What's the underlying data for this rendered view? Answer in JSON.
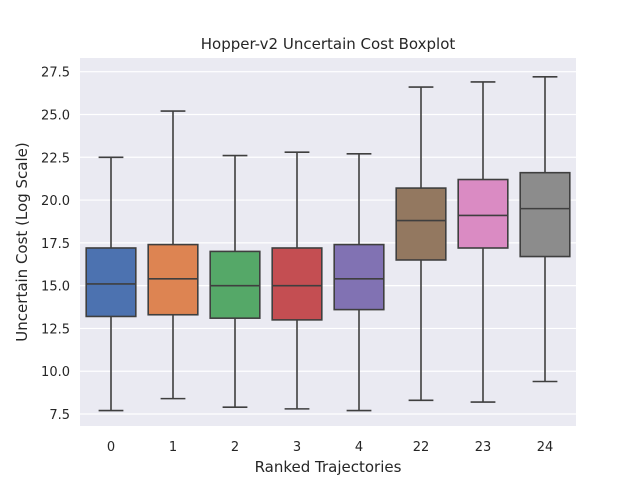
{
  "chart_data": {
    "type": "boxplot",
    "title": "Hopper-v2 Uncertain Cost Boxplot",
    "xlabel": "Ranked Trajectories",
    "ylabel": "Uncertain Cost (Log Scale)",
    "ylim": [
      6.8,
      28.3
    ],
    "yticks": [
      7.5,
      10.0,
      12.5,
      15.0,
      17.5,
      20.0,
      22.5,
      25.0,
      27.5
    ],
    "ytick_labels": [
      "7.5",
      "10.0",
      "12.5",
      "15.0",
      "17.5",
      "20.0",
      "22.5",
      "25.0",
      "27.5"
    ],
    "grid": true,
    "legend": "none",
    "categories": [
      "0",
      "1",
      "2",
      "3",
      "4",
      "22",
      "23",
      "24"
    ],
    "boxes": [
      {
        "category": "0",
        "min": 7.7,
        "q1": 13.2,
        "median": 15.1,
        "q3": 17.2,
        "max": 22.5,
        "color": "#4c72b0"
      },
      {
        "category": "1",
        "min": 8.4,
        "q1": 13.3,
        "median": 15.4,
        "q3": 17.4,
        "max": 25.2,
        "color": "#dd8452"
      },
      {
        "category": "2",
        "min": 7.9,
        "q1": 13.1,
        "median": 15.0,
        "q3": 17.0,
        "max": 22.6,
        "color": "#55a868"
      },
      {
        "category": "3",
        "min": 7.8,
        "q1": 13.0,
        "median": 15.0,
        "q3": 17.2,
        "max": 22.8,
        "color": "#c44e52"
      },
      {
        "category": "4",
        "min": 7.7,
        "q1": 13.6,
        "median": 15.4,
        "q3": 17.4,
        "max": 22.7,
        "color": "#8172b3"
      },
      {
        "category": "22",
        "min": 8.3,
        "q1": 16.5,
        "median": 18.8,
        "q3": 20.7,
        "max": 26.6,
        "color": "#937860"
      },
      {
        "category": "23",
        "min": 8.2,
        "q1": 17.2,
        "median": 19.1,
        "q3": 21.2,
        "max": 26.9,
        "color": "#da8bc3"
      },
      {
        "category": "24",
        "min": 9.4,
        "q1": 16.7,
        "median": 19.5,
        "q3": 21.6,
        "max": 27.2,
        "color": "#8c8c8c"
      }
    ]
  }
}
